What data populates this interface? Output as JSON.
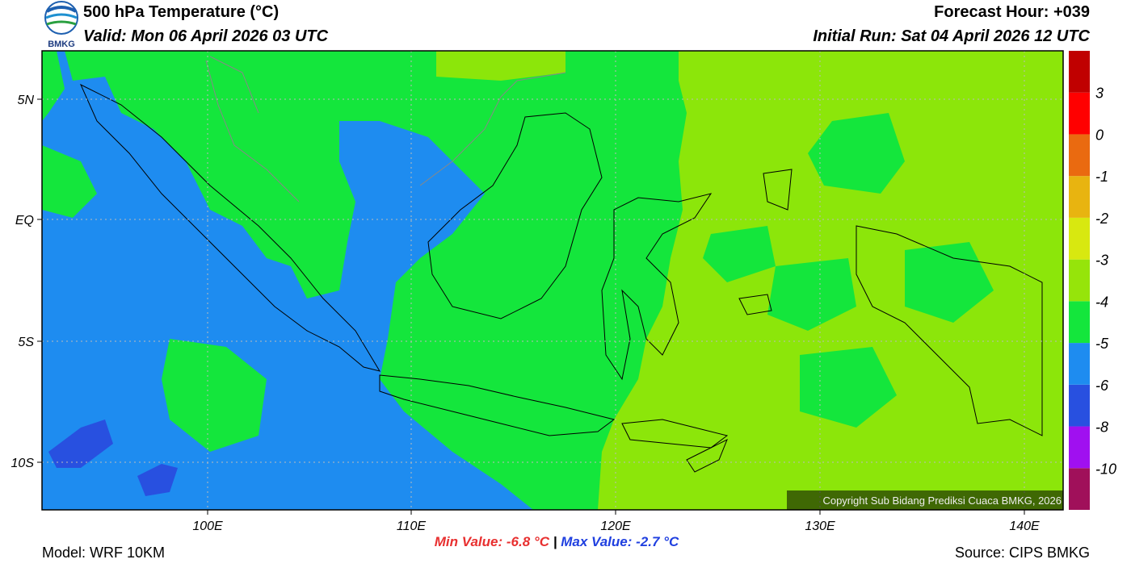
{
  "header": {
    "logo_text": "BMKG",
    "title": "500 hPa Temperature (°C)",
    "valid": "Valid: Mon 06 April 2026 03 UTC",
    "forecast_hour": "Forecast Hour: +039",
    "initial_run": "Initial Run: Sat 04 April 2026 12 UTC"
  },
  "map": {
    "lon_labels": [
      "100E",
      "110E",
      "120E",
      "130E",
      "140E"
    ],
    "lat_labels": [
      "5N",
      "EQ",
      "5S",
      "10S"
    ],
    "copyright": "Copyright Sub Bidang Prediksi Cuaca BMKG, 2026"
  },
  "colorbar": {
    "colors": [
      "#a0105a",
      "#a010f0",
      "#2850e0",
      "#1e8cf0",
      "#14e63c",
      "#96e40a",
      "#d8e810",
      "#e8b410",
      "#ea6a10",
      "#ff0000",
      "#c00000"
    ],
    "labels": [
      -10,
      -8,
      -6,
      -5,
      -4,
      -3,
      -2,
      -1,
      0,
      3
    ]
  },
  "stats": {
    "min_label": "Min Value:",
    "min_value": -6.8,
    "min_unit": "°C",
    "separator": "|",
    "max_label": "Max Value:",
    "max_value": -2.7,
    "max_unit": "°C"
  },
  "footer": {
    "model": "Model: WRF 10KM",
    "source": "Source: CIPS BMKG"
  }
}
